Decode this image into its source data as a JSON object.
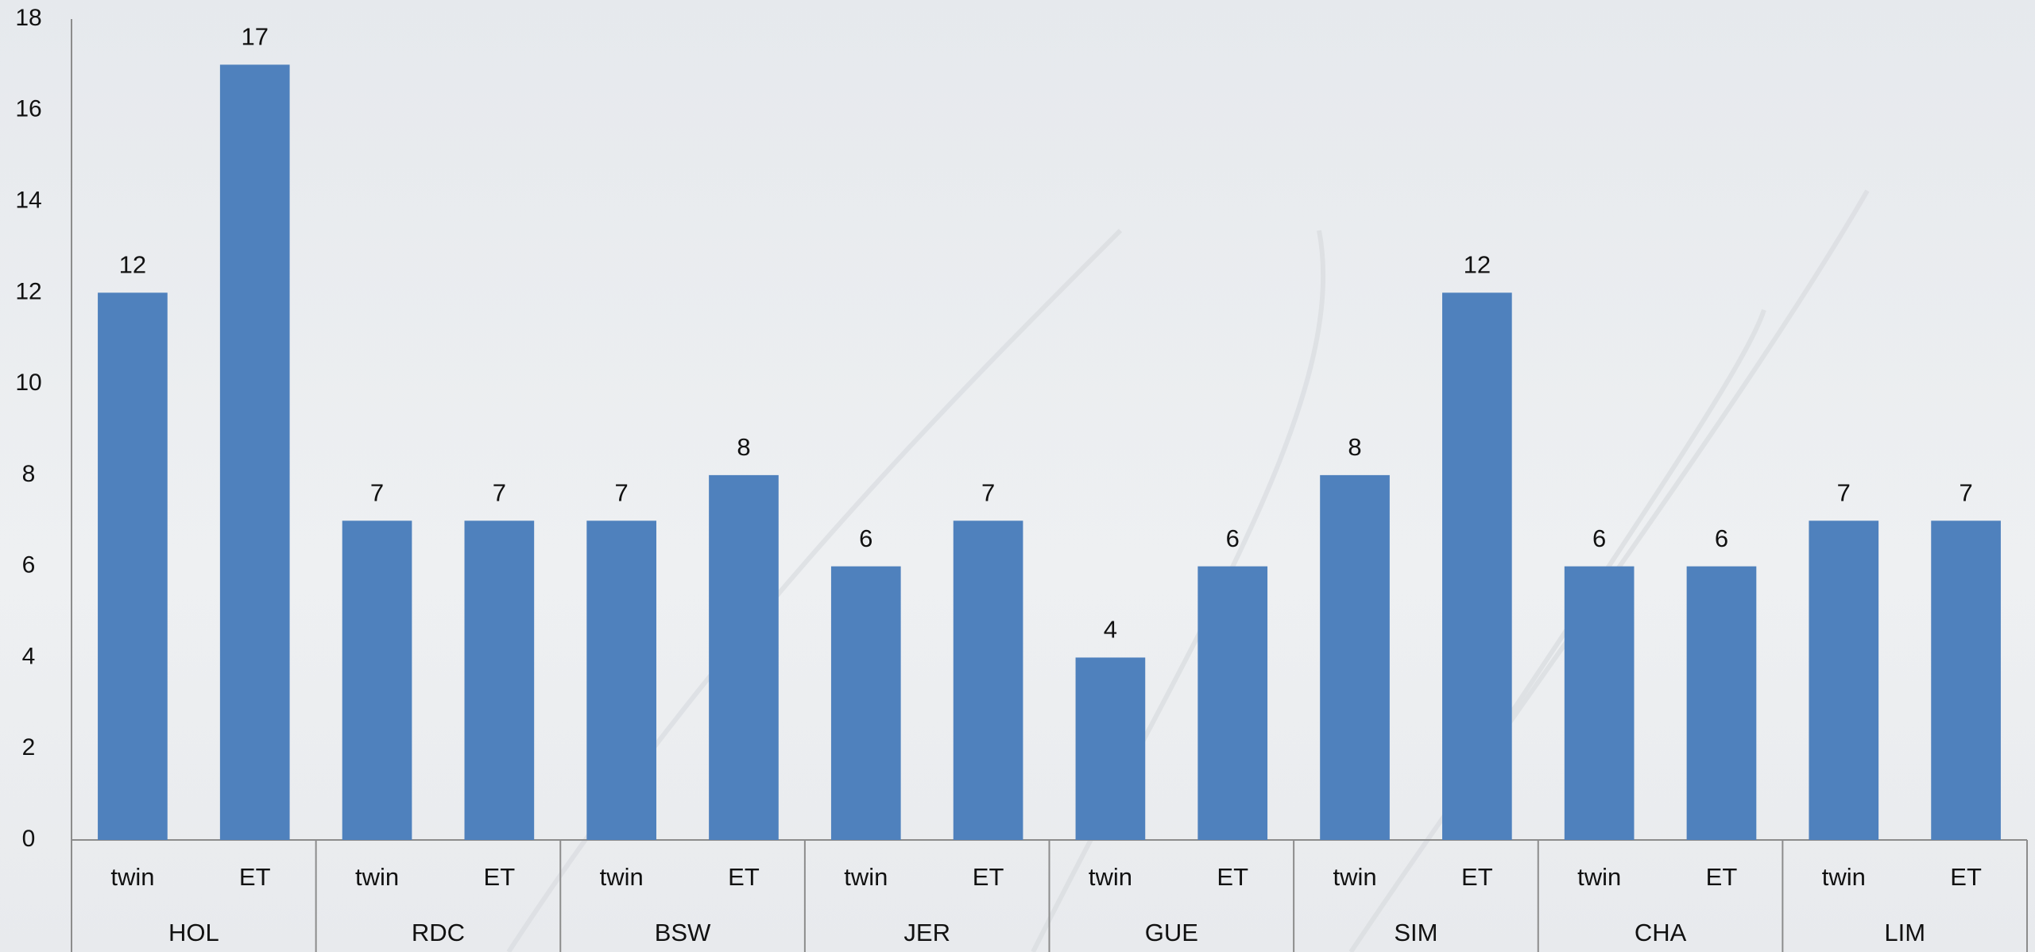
{
  "chart_data": {
    "type": "bar",
    "categories": [
      "twin",
      "ET",
      "twin",
      "ET",
      "twin",
      "ET",
      "twin",
      "ET",
      "twin",
      "ET",
      "twin",
      "ET",
      "twin",
      "ET",
      "twin",
      "ET"
    ],
    "groups": [
      "HOL",
      "RDC",
      "BSW",
      "JER",
      "GUE",
      "SIM",
      "CHA",
      "LIM"
    ],
    "values": [
      12,
      17,
      7,
      7,
      7,
      8,
      6,
      7,
      4,
      6,
      8,
      12,
      6,
      6,
      7,
      7
    ],
    "color": "#4f81bd",
    "ylim": [
      0,
      18
    ],
    "yticks": [
      0,
      2,
      4,
      6,
      8,
      10,
      12,
      14,
      16,
      18
    ],
    "grid": false,
    "data_labels": true
  }
}
